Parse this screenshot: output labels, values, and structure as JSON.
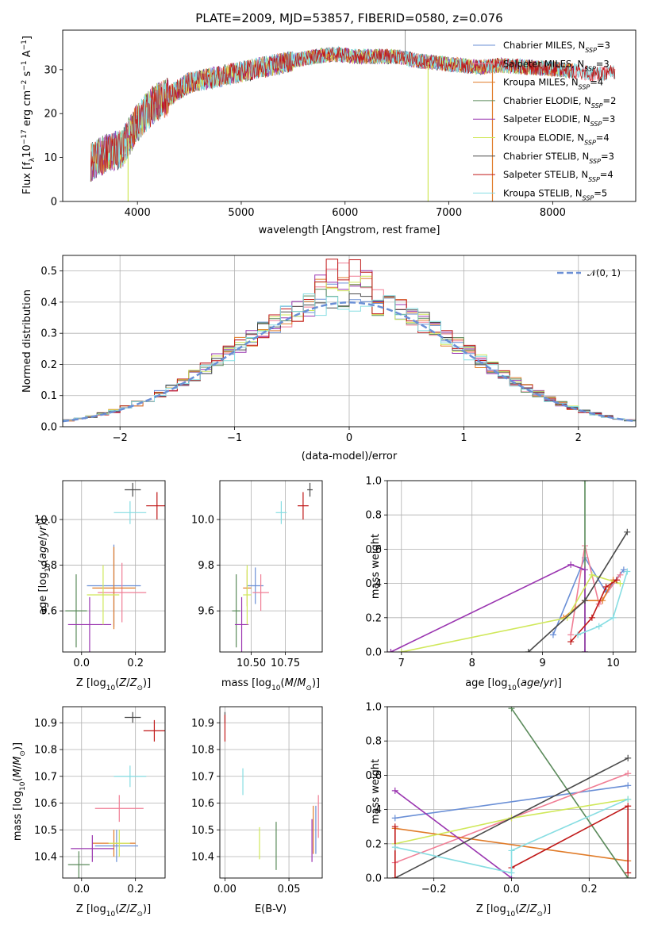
{
  "colors": [
    "#6a8fd6",
    "#f07e95",
    "#e07b28",
    "#5a8a5a",
    "#9a35b0",
    "#d0e85a",
    "#4a4a4a",
    "#c01818",
    "#86dde2"
  ],
  "chart_data": [
    {
      "id": "spectrum",
      "type": "line",
      "title": "PLATE=2009, MJD=53857, FIBERID=0580, z=0.076",
      "xlabel": "wavelength [Angstrom, rest frame]",
      "ylabel": "Flux [f",
      "xlim": [
        3280,
        8800
      ],
      "ylim": [
        0,
        39
      ],
      "xticks": [
        "4000",
        "5000",
        "6000",
        "7000",
        "8000"
      ],
      "yticks": [
        "0",
        "10",
        "20",
        "30"
      ],
      "grid": false,
      "legend_position": "top-right",
      "legend": [
        {
          "label": "Chabrier MILES, N",
          "n": "=3"
        },
        {
          "label": "Salpeter MILES, N",
          "n": "=3"
        },
        {
          "label": "Kroupa MILES, N",
          "n": "=4"
        },
        {
          "label": "Chabrier ELODIE, N",
          "n": "=2"
        },
        {
          "label": "Salpeter ELODIE, N",
          "n": "=3"
        },
        {
          "label": "Kroupa ELODIE, N",
          "n": "=4"
        },
        {
          "label": "Chabrier STELIB, N",
          "n": "=3"
        },
        {
          "label": "Salpeter STELIB, N",
          "n": "=4"
        },
        {
          "label": "Kroupa STELIB, N",
          "n": "=5"
        }
      ],
      "continuum": [
        [
          3550,
          9
        ],
        [
          3700,
          11
        ],
        [
          3850,
          12
        ],
        [
          4000,
          18
        ],
        [
          4150,
          22
        ],
        [
          4300,
          24
        ],
        [
          4500,
          27
        ],
        [
          4700,
          28
        ],
        [
          4900,
          29
        ],
        [
          5100,
          30
        ],
        [
          5300,
          31
        ],
        [
          5500,
          32
        ],
        [
          5700,
          33
        ],
        [
          5900,
          33.5
        ],
        [
          6100,
          33
        ],
        [
          6300,
          33
        ],
        [
          6500,
          33
        ],
        [
          6700,
          32
        ],
        [
          6900,
          31.5
        ],
        [
          7100,
          31
        ],
        [
          7300,
          30.5
        ]
      ],
      "continuum_red": [
        [
          7300,
          31
        ],
        [
          7500,
          31
        ],
        [
          7800,
          30.5
        ],
        [
          8100,
          30
        ],
        [
          8400,
          29
        ],
        [
          8600,
          29.5
        ]
      ],
      "drops": [
        {
          "x": 3910,
          "to": 0,
          "series": 5
        },
        {
          "x": 6800,
          "to": 0,
          "series": 5
        },
        {
          "x": 7420,
          "to": 0,
          "series": 2
        }
      ],
      "spike": {
        "x": 6580,
        "to": 39
      }
    },
    {
      "id": "residual-hist",
      "type": "line",
      "xlabel": "(data-model)/error",
      "ylabel": "Normed distribution",
      "xlim": [
        -2.5,
        2.5
      ],
      "ylim": [
        0,
        0.55
      ],
      "xticks": [
        "-2",
        "-1",
        "0",
        "1",
        "2"
      ],
      "yticks": [
        "0.0",
        "0.1",
        "0.2",
        "0.3",
        "0.4",
        "0.5"
      ],
      "grid": true,
      "legend_position": "top-right",
      "legend_label": "𝒩(0, 1)",
      "bin_width": 0.1,
      "series_peaks": [
        0.46,
        0.52,
        0.47,
        0.45,
        0.51,
        0.5,
        0.44,
        0.53,
        0.42
      ]
    },
    {
      "id": "age-vs-Z",
      "type": "scatter",
      "xlabel": "Z [log",
      "ylabel": "age  [log",
      "xlim": [
        -0.07,
        0.31
      ],
      "ylim": [
        9.42,
        10.17
      ],
      "xticks": [
        {
          "v": 0,
          "t": "0.0"
        },
        {
          "v": 0.2,
          "t": "0.2"
        }
      ],
      "yticks": [
        {
          "v": 9.6,
          "t": "9.6"
        },
        {
          "v": 9.8,
          "t": "9.8"
        },
        {
          "v": 10.0,
          "t": "10.0"
        }
      ],
      "grid": true,
      "points": [
        {
          "x": 0.12,
          "y": 9.71,
          "ex": 0.1,
          "ey": 0.18,
          "c": 0
        },
        {
          "x": 0.15,
          "y": 9.68,
          "ex": 0.09,
          "ey": 0.13,
          "c": 1
        },
        {
          "x": 0.12,
          "y": 9.7,
          "ex": 0.08,
          "ey": 0.18,
          "c": 2
        },
        {
          "x": -0.02,
          "y": 9.6,
          "ex": 0.04,
          "ey": 0.16,
          "c": 3
        },
        {
          "x": 0.03,
          "y": 9.54,
          "ex": 0.08,
          "ey": 0.12,
          "c": 4
        },
        {
          "x": 0.08,
          "y": 9.67,
          "ex": 0.06,
          "ey": 0.13,
          "c": 5
        },
        {
          "x": 0.19,
          "y": 10.13,
          "ex": 0.03,
          "ey": 0.03,
          "c": 6
        },
        {
          "x": 0.28,
          "y": 10.06,
          "ex": 0.04,
          "ey": 0.06,
          "c": 7
        },
        {
          "x": 0.18,
          "y": 10.03,
          "ex": 0.06,
          "ey": 0.05,
          "c": 8
        }
      ]
    },
    {
      "id": "age-vs-mass",
      "type": "scatter",
      "xlabel": "mass [log",
      "ylabel": "",
      "xlim": [
        10.27,
        11.02
      ],
      "ylim": [
        9.42,
        10.17
      ],
      "xticks": [
        {
          "v": 10.5,
          "t": "10.50"
        },
        {
          "v": 10.75,
          "t": "10.75"
        }
      ],
      "yticks": [
        {
          "v": 9.6,
          "t": "9.6"
        },
        {
          "v": 9.8,
          "t": "9.8"
        },
        {
          "v": 10.0,
          "t": "10.0"
        }
      ],
      "grid": true,
      "points": [
        {
          "x": 10.53,
          "y": 9.71,
          "ex": 0.06,
          "ey": 0.08,
          "c": 0
        },
        {
          "x": 10.57,
          "y": 9.68,
          "ex": 0.06,
          "ey": 0.08,
          "c": 1
        },
        {
          "x": 10.47,
          "y": 9.7,
          "ex": 0.03,
          "ey": 0.08,
          "c": 2
        },
        {
          "x": 10.39,
          "y": 9.6,
          "ex": 0.03,
          "ey": 0.16,
          "c": 3
        },
        {
          "x": 10.43,
          "y": 9.54,
          "ex": 0.05,
          "ey": 0.12,
          "c": 4
        },
        {
          "x": 10.47,
          "y": 9.67,
          "ex": 0.03,
          "ey": 0.13,
          "c": 5
        },
        {
          "x": 10.93,
          "y": 10.13,
          "ex": 0.02,
          "ey": 0.03,
          "c": 6
        },
        {
          "x": 10.88,
          "y": 10.06,
          "ex": 0.04,
          "ey": 0.06,
          "c": 7
        },
        {
          "x": 10.72,
          "y": 10.03,
          "ex": 0.04,
          "ey": 0.05,
          "c": 8
        }
      ]
    },
    {
      "id": "weight-vs-age",
      "type": "line",
      "xlabel": "age  [log",
      "ylabel": "mass weight",
      "xlim": [
        6.8,
        10.32
      ],
      "ylim": [
        0,
        1
      ],
      "xticks": [
        {
          "v": 7,
          "t": "7"
        },
        {
          "v": 8,
          "t": "8"
        },
        {
          "v": 9,
          "t": "9"
        },
        {
          "v": 10,
          "t": "10"
        }
      ],
      "yticks": [
        {
          "v": 0,
          "t": "0.0"
        },
        {
          "v": 0.2,
          "t": "0.2"
        },
        {
          "v": 0.4,
          "t": "0.4"
        },
        {
          "v": 0.6,
          "t": "0.6"
        },
        {
          "v": 0.8,
          "t": "0.8"
        },
        {
          "v": 1.0,
          "t": "1.0"
        }
      ],
      "grid": true,
      "series": [
        {
          "c": 0,
          "pts": [
            [
              9.15,
              0.1
            ],
            [
              9.6,
              0.55
            ],
            [
              9.9,
              0.35
            ],
            [
              10.15,
              0.48
            ]
          ]
        },
        {
          "c": 1,
          "pts": [
            [
              9.4,
              0.1
            ],
            [
              9.6,
              0.62
            ],
            [
              9.8,
              0.28
            ],
            [
              10.1,
              0.45
            ]
          ]
        },
        {
          "c": 2,
          "pts": [
            [
              9.3,
              0.2
            ],
            [
              9.6,
              0.3
            ],
            [
              9.85,
              0.3
            ],
            [
              10.0,
              0.42
            ]
          ]
        },
        {
          "c": 3,
          "pts": [
            [
              9.6,
              0.0
            ],
            [
              9.6,
              1.0
            ]
          ]
        },
        {
          "c": 4,
          "pts": [
            [
              6.85,
              0.0
            ],
            [
              9.4,
              0.51
            ],
            [
              9.6,
              0.48
            ],
            [
              9.6,
              0.0
            ]
          ]
        },
        {
          "c": 5,
          "pts": [
            [
              7.0,
              0.0
            ],
            [
              9.35,
              0.2
            ],
            [
              9.7,
              0.45
            ],
            [
              10.1,
              0.4
            ]
          ]
        },
        {
          "c": 6,
          "pts": [
            [
              8.8,
              0.0
            ],
            [
              9.6,
              0.3
            ],
            [
              10.2,
              0.7
            ]
          ]
        },
        {
          "c": 7,
          "pts": [
            [
              9.4,
              0.06
            ],
            [
              9.7,
              0.2
            ],
            [
              9.9,
              0.38
            ],
            [
              10.05,
              0.42
            ]
          ]
        },
        {
          "c": 8,
          "pts": [
            [
              9.5,
              0.1
            ],
            [
              9.8,
              0.15
            ],
            [
              10.0,
              0.2
            ],
            [
              10.2,
              0.47
            ]
          ]
        }
      ]
    },
    {
      "id": "mass-vs-Z",
      "type": "scatter",
      "xlabel": "Z [log",
      "ylabel": "mass [log",
      "xlim": [
        -0.07,
        0.31
      ],
      "ylim": [
        10.32,
        10.96
      ],
      "xticks": [
        {
          "v": 0,
          "t": "0.0"
        },
        {
          "v": 0.2,
          "t": "0.2"
        }
      ],
      "yticks": [
        {
          "v": 10.4,
          "t": "10.4"
        },
        {
          "v": 10.5,
          "t": "10.5"
        },
        {
          "v": 10.6,
          "t": "10.6"
        },
        {
          "v": 10.7,
          "t": "10.7"
        },
        {
          "v": 10.8,
          "t": "10.8"
        },
        {
          "v": 10.9,
          "t": "10.9"
        }
      ],
      "grid": true,
      "points": [
        {
          "x": 0.13,
          "y": 10.44,
          "ex": 0.08,
          "ey": 0.06,
          "c": 0
        },
        {
          "x": 0.14,
          "y": 10.58,
          "ex": 0.09,
          "ey": 0.05,
          "c": 1
        },
        {
          "x": 0.12,
          "y": 10.45,
          "ex": 0.08,
          "ey": 0.05,
          "c": 2
        },
        {
          "x": -0.01,
          "y": 10.37,
          "ex": 0.04,
          "ey": 0.05,
          "c": 3
        },
        {
          "x": 0.04,
          "y": 10.43,
          "ex": 0.08,
          "ey": 0.05,
          "c": 4
        },
        {
          "x": 0.14,
          "y": 10.45,
          "ex": 0.04,
          "ey": 0.05,
          "c": 5
        },
        {
          "x": 0.19,
          "y": 10.92,
          "ex": 0.03,
          "ey": 0.02,
          "c": 6
        },
        {
          "x": 0.27,
          "y": 10.87,
          "ex": 0.04,
          "ey": 0.04,
          "c": 7
        },
        {
          "x": 0.18,
          "y": 10.7,
          "ex": 0.06,
          "ey": 0.04,
          "c": 8
        }
      ]
    },
    {
      "id": "mass-vs-ebv",
      "type": "scatter",
      "xlabel": "E(B-V)",
      "ylabel": "",
      "xlim": [
        -0.004,
        0.076
      ],
      "ylim": [
        10.32,
        10.96
      ],
      "xticks": [
        {
          "v": 0,
          "t": "0.00"
        },
        {
          "v": 0.05,
          "t": "0.05"
        }
      ],
      "yticks": [
        {
          "v": 10.4,
          "t": "10.4"
        },
        {
          "v": 10.5,
          "t": "10.5"
        },
        {
          "v": 10.6,
          "t": "10.6"
        },
        {
          "v": 10.7,
          "t": "10.7"
        },
        {
          "v": 10.8,
          "t": "10.8"
        },
        {
          "v": 10.9,
          "t": "10.9"
        }
      ],
      "grid": true,
      "points": [
        {
          "x": 0.071,
          "y": 10.5,
          "ex": 0,
          "ey": 0.09,
          "c": 0
        },
        {
          "x": 0.073,
          "y": 10.55,
          "ex": 0,
          "ey": 0.08,
          "c": 1
        },
        {
          "x": 0.069,
          "y": 10.5,
          "ex": 0,
          "ey": 0.09,
          "c": 2
        },
        {
          "x": 0.04,
          "y": 10.44,
          "ex": 0,
          "ey": 0.09,
          "c": 3
        },
        {
          "x": 0.068,
          "y": 10.46,
          "ex": 0,
          "ey": 0.08,
          "c": 4
        },
        {
          "x": 0.027,
          "y": 10.45,
          "ex": 0,
          "ey": 0.06,
          "c": 5
        },
        {
          "x": 0.0,
          "y": 10.92,
          "ex": 0,
          "ey": 0.02,
          "c": 6
        },
        {
          "x": 0.0,
          "y": 10.88,
          "ex": 0,
          "ey": 0.05,
          "c": 7
        },
        {
          "x": 0.014,
          "y": 10.68,
          "ex": 0,
          "ey": 0.05,
          "c": 8
        }
      ]
    },
    {
      "id": "weight-vs-Z",
      "type": "line",
      "xlabel": "Z [log",
      "ylabel": "mass weight",
      "xlim": [
        -0.32,
        0.32
      ],
      "ylim": [
        0,
        1
      ],
      "xticks": [
        {
          "v": -0.2,
          "t": "−0.2"
        },
        {
          "v": 0,
          "t": "0.0"
        },
        {
          "v": 0.2,
          "t": "0.2"
        }
      ],
      "yticks": [
        {
          "v": 0,
          "t": "0.0"
        },
        {
          "v": 0.2,
          "t": "0.2"
        },
        {
          "v": 0.4,
          "t": "0.4"
        },
        {
          "v": 0.6,
          "t": "0.6"
        },
        {
          "v": 0.8,
          "t": "0.8"
        },
        {
          "v": 1.0,
          "t": "1.0"
        }
      ],
      "grid": true,
      "series": [
        {
          "c": 0,
          "pts": [
            [
              -0.3,
              0.35
            ],
            [
              0.3,
              0.54
            ]
          ]
        },
        {
          "c": 1,
          "pts": [
            [
              -0.3,
              0.09
            ],
            [
              0.0,
              0.35
            ],
            [
              0.3,
              0.61
            ]
          ]
        },
        {
          "c": 2,
          "pts": [
            [
              -0.3,
              0.29
            ],
            [
              0.3,
              0.1
            ]
          ]
        },
        {
          "c": 3,
          "pts": [
            [
              0.0,
              0.99
            ],
            [
              0.3,
              0.0
            ]
          ]
        },
        {
          "c": 4,
          "pts": [
            [
              -0.3,
              0.51
            ],
            [
              0.0,
              0.0
            ]
          ]
        },
        {
          "c": 5,
          "pts": [
            [
              -0.3,
              0.2
            ],
            [
              0.0,
              0.35
            ],
            [
              0.3,
              0.46
            ]
          ]
        },
        {
          "c": 6,
          "pts": [
            [
              -0.3,
              0.0
            ],
            [
              0.3,
              0.7
            ]
          ]
        },
        {
          "c": 7,
          "pts": [
            [
              -0.3,
              0.3
            ],
            [
              -0.3,
              0.0
            ]
          ],
          "extra": [
            [
              0.0,
              0.06
            ],
            [
              0.3,
              0.42
            ],
            [
              0.3,
              0.03
            ]
          ]
        },
        {
          "c": 8,
          "pts": [
            [
              -0.3,
              0.18
            ],
            [
              0.0,
              0.03
            ],
            [
              0.0,
              0.16
            ],
            [
              0.3,
              0.46
            ]
          ]
        }
      ]
    }
  ]
}
